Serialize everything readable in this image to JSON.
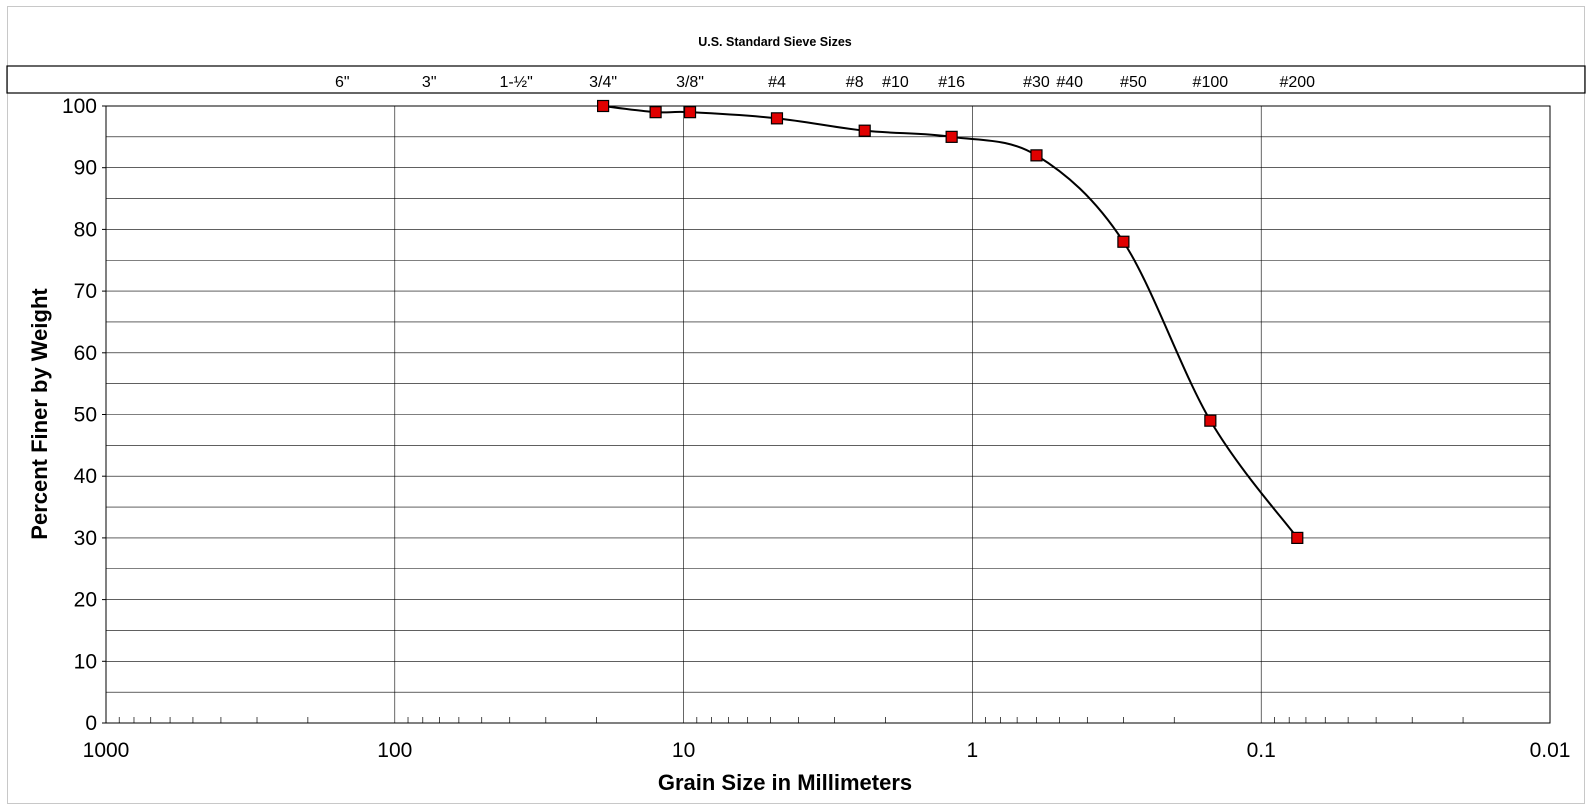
{
  "chart_data": {
    "type": "scatter",
    "title": "",
    "top_axis_title": "U.S. Standard Sieve Sizes",
    "xlabel": "Grain Size in Millimeters",
    "ylabel": "Percent Finer by Weight",
    "x_scale": "log",
    "x_reversed": true,
    "xlim": [
      1000,
      0.01
    ],
    "ylim": [
      0,
      100
    ],
    "x_tick_values": [
      1000,
      100,
      10,
      1,
      0.1,
      0.01
    ],
    "x_tick_labels": [
      "1000",
      "100",
      "10",
      "1",
      "0.1",
      "0.01"
    ],
    "y_tick_values": [
      0,
      10,
      20,
      30,
      40,
      50,
      60,
      70,
      80,
      90,
      100
    ],
    "y_tick_labels": [
      "0",
      "10",
      "20",
      "30",
      "40",
      "50",
      "60",
      "70",
      "80",
      "90",
      "100"
    ],
    "grid": true,
    "sieve_sizes": [
      {
        "label": "6\"",
        "size_mm": 152
      },
      {
        "label": "3\"",
        "size_mm": 76
      },
      {
        "label": "1-½\"",
        "size_mm": 38
      },
      {
        "label": "3/4\"",
        "size_mm": 19
      },
      {
        "label": "3/8\"",
        "size_mm": 9.5
      },
      {
        "label": "#4",
        "size_mm": 4.75
      },
      {
        "label": "#8",
        "size_mm": 2.36
      },
      {
        "label": "#10",
        "size_mm": 2.0
      },
      {
        "label": "#16",
        "size_mm": 1.18
      },
      {
        "label": "#30",
        "size_mm": 0.6
      },
      {
        "label": "#40",
        "size_mm": 0.425
      },
      {
        "label": "#50",
        "size_mm": 0.3
      },
      {
        "label": "#100",
        "size_mm": 0.15
      },
      {
        "label": "#200",
        "size_mm": 0.075
      }
    ],
    "series": [
      {
        "marker_color": "#e00000",
        "line_color": "#000000",
        "x": [
          19.0,
          12.5,
          9.5,
          4.75,
          2.36,
          1.18,
          0.6,
          0.3,
          0.15,
          0.075
        ],
        "y": [
          100,
          99,
          99,
          98,
          96,
          95,
          92,
          78,
          49,
          30
        ]
      }
    ]
  }
}
